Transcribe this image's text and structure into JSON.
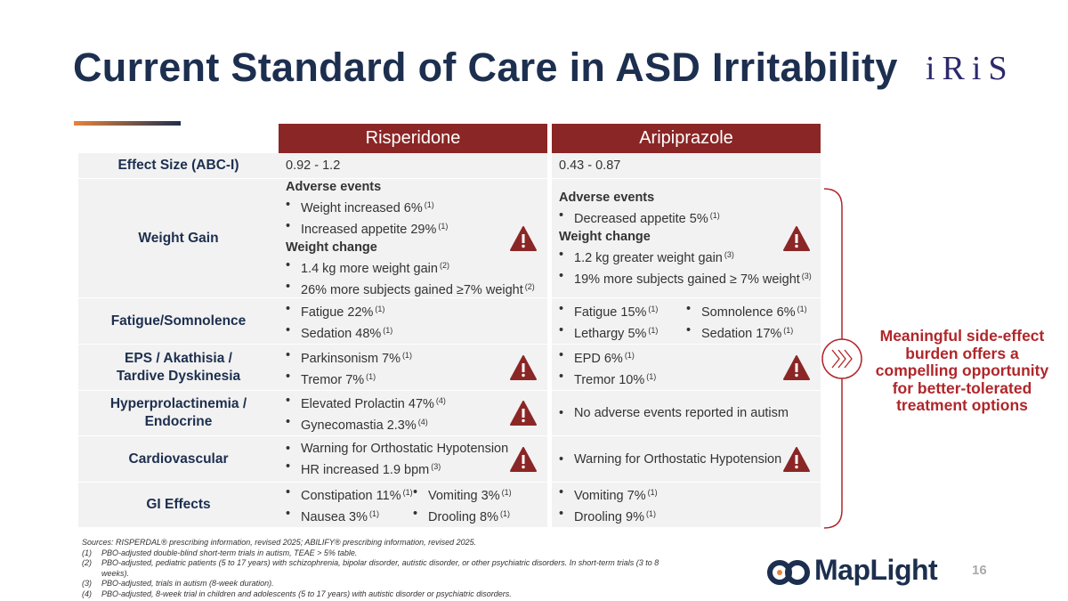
{
  "header": {
    "title": "Current Standard of Care in ASD Irritability",
    "logo": "iRiS"
  },
  "table": {
    "columns": [
      "Risperidone",
      "Aripiprazole"
    ],
    "rows": [
      {
        "label": [
          "Effect Size (ABC-I)"
        ],
        "risperidone": {
          "text": "0.92 - 1.2"
        },
        "aripiprazole": {
          "text": "0.43 - 0.87"
        }
      },
      {
        "label": [
          "Weight Gain"
        ],
        "risperidone": {
          "warning": true,
          "columns": [
            [
              {
                "heading": "Adverse events",
                "items": [
                  {
                    "text": "Weight increased 6%",
                    "ref": "(1)"
                  },
                  {
                    "text": "Increased appetite 29%",
                    "ref": "(1)"
                  }
                ]
              },
              {
                "heading": "Weight change",
                "items": [
                  {
                    "text": "1.4 kg more weight gain",
                    "ref": "(2)"
                  },
                  {
                    "text": "26% more subjects gained ≥7% weight",
                    "ref": "(2)"
                  }
                ]
              }
            ]
          ]
        },
        "aripiprazole": {
          "warning": true,
          "columns": [
            [
              {
                "heading": "Adverse events",
                "items": [
                  {
                    "text": "Decreased appetite 5%",
                    "ref": "(1)"
                  }
                ]
              },
              {
                "heading": "Weight change",
                "items": [
                  {
                    "text": "1.2 kg greater weight gain",
                    "ref": "(3)"
                  },
                  {
                    "text": "19% more subjects gained ≥ 7% weight",
                    "ref": "(3)"
                  }
                ]
              }
            ]
          ]
        }
      },
      {
        "label": [
          "Fatigue/Somnolence"
        ],
        "risperidone": {
          "columns": [
            [
              {
                "items": [
                  {
                    "text": "Fatigue 22%",
                    "ref": "(1)"
                  },
                  {
                    "text": "Sedation 48%",
                    "ref": "(1)"
                  }
                ]
              }
            ]
          ]
        },
        "aripiprazole": {
          "columns": [
            [
              {
                "items": [
                  {
                    "text": "Fatigue 15%",
                    "ref": "(1)"
                  },
                  {
                    "text": "Lethargy 5%",
                    "ref": "(1)"
                  }
                ]
              }
            ],
            [
              {
                "items": [
                  {
                    "text": "Somnolence 6%",
                    "ref": "(1)"
                  },
                  {
                    "text": "Sedation 17%",
                    "ref": "(1)"
                  }
                ]
              }
            ]
          ]
        }
      },
      {
        "label": [
          "EPS / Akathisia /",
          "Tardive Dyskinesia"
        ],
        "risperidone": {
          "warning": true,
          "columns": [
            [
              {
                "items": [
                  {
                    "text": "Parkinsonism 7%",
                    "ref": "(1)"
                  },
                  {
                    "text": "Tremor 7%",
                    "ref": "(1)"
                  }
                ]
              }
            ]
          ]
        },
        "aripiprazole": {
          "warning": true,
          "columns": [
            [
              {
                "items": [
                  {
                    "text": "EPD 6%",
                    "ref": "(1)"
                  },
                  {
                    "text": "Tremor 10%",
                    "ref": "(1)"
                  }
                ]
              }
            ]
          ]
        }
      },
      {
        "label": [
          "Hyperprolactinemia /",
          "Endocrine"
        ],
        "risperidone": {
          "warning": true,
          "columns": [
            [
              {
                "items": [
                  {
                    "text": "Elevated Prolactin 47%",
                    "ref": "(4)"
                  },
                  {
                    "text": "Gynecomastia 2.3%",
                    "ref": "(4)"
                  }
                ]
              }
            ]
          ]
        },
        "aripiprazole": {
          "columns": [
            [
              {
                "items": [
                  {
                    "text": "No adverse events reported in autism"
                  }
                ]
              }
            ]
          ]
        }
      },
      {
        "label": [
          "Cardiovascular"
        ],
        "risperidone": {
          "warning": true,
          "columns": [
            [
              {
                "items": [
                  {
                    "text": "Warning for Orthostatic Hypotension"
                  },
                  {
                    "text": "HR increased 1.9 bpm",
                    "ref": "(3)"
                  }
                ]
              }
            ]
          ]
        },
        "aripiprazole": {
          "warning": true,
          "columns": [
            [
              {
                "items": [
                  {
                    "text": "Warning for Orthostatic Hypotension"
                  }
                ]
              }
            ]
          ]
        }
      },
      {
        "label": [
          "GI Effects"
        ],
        "risperidone": {
          "columns": [
            [
              {
                "items": [
                  {
                    "text": "Constipation 11%",
                    "ref": "(1)"
                  },
                  {
                    "text": "Nausea 3%",
                    "ref": "(1)"
                  }
                ]
              }
            ],
            [
              {
                "items": [
                  {
                    "text": "Vomiting 3%",
                    "ref": "(1)"
                  },
                  {
                    "text": "Drooling 8%",
                    "ref": "(1)"
                  }
                ]
              }
            ]
          ]
        },
        "aripiprazole": {
          "columns": [
            [
              {
                "items": [
                  {
                    "text": "Vomiting 7%",
                    "ref": "(1)"
                  },
                  {
                    "text": "Drooling 9%",
                    "ref": "(1)"
                  }
                ]
              }
            ]
          ]
        }
      }
    ]
  },
  "callout": "Meaningful side-effect burden offers a compelling opportunity for better-tolerated treatment options",
  "footer": {
    "sources": "Sources: RISPERDAL®  prescribing information, revised 2025; ABILIFY®  prescribing information, revised 2025.",
    "notes": [
      {
        "num": "(1)",
        "text": "PBO-adjusted double-blind short-term trials in autism, TEAE > 5% table."
      },
      {
        "num": "(2)",
        "text": "PBO-adjusted, pediatric patients (5 to 17 years) with schizophrenia, bipolar disorder, autistic disorder, or other psychiatric disorders. In short-term trials (3 to 8 weeks)."
      },
      {
        "num": "(3)",
        "text": "PBO-adjusted, trials in autism (8-week duration)."
      },
      {
        "num": "(4)",
        "text": "PBO-adjusted, 8-week trial in children and adolescents (5 to 17 years) with autistic disorder or psychiatric disorders."
      }
    ],
    "brand": "MapLight",
    "page": "16"
  }
}
